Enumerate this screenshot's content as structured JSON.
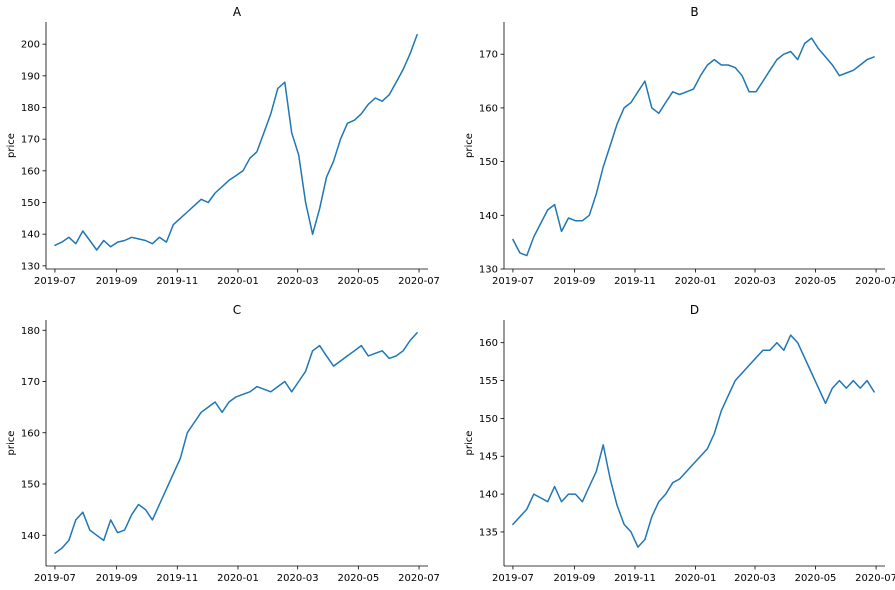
{
  "chart_data": [
    {
      "type": "line",
      "title": "A",
      "ylabel": "price",
      "xlim": [
        "2019-06-22",
        "2020-07-10"
      ],
      "ylim": [
        129,
        207
      ],
      "yticks": [
        130,
        140,
        150,
        160,
        170,
        180,
        190,
        200
      ],
      "xticks": [
        "2019-07",
        "2019-09",
        "2019-11",
        "2020-01",
        "2020-03",
        "2020-05",
        "2020-07"
      ],
      "color": "#1f77b4",
      "series": [
        {
          "x": [
            "2019-07-01",
            "2019-07-08",
            "2019-07-15",
            "2019-07-22",
            "2019-07-29",
            "2019-08-05",
            "2019-08-12",
            "2019-08-19",
            "2019-08-26",
            "2019-09-02",
            "2019-09-09",
            "2019-09-16",
            "2019-09-23",
            "2019-09-30",
            "2019-10-07",
            "2019-10-14",
            "2019-10-21",
            "2019-10-28",
            "2019-11-04",
            "2019-11-11",
            "2019-11-18",
            "2019-11-25",
            "2019-12-02",
            "2019-12-09",
            "2019-12-16",
            "2019-12-23",
            "2019-12-30",
            "2020-01-06",
            "2020-01-13",
            "2020-01-20",
            "2020-01-27",
            "2020-02-03",
            "2020-02-10",
            "2020-02-17",
            "2020-02-24",
            "2020-03-02",
            "2020-03-09",
            "2020-03-16",
            "2020-03-23",
            "2020-03-30",
            "2020-04-06",
            "2020-04-13",
            "2020-04-20",
            "2020-04-27",
            "2020-05-04",
            "2020-05-11",
            "2020-05-18",
            "2020-05-25",
            "2020-06-01",
            "2020-06-08",
            "2020-06-15",
            "2020-06-22",
            "2020-06-29"
          ],
          "values": [
            136.5,
            137.5,
            139,
            137,
            141,
            138,
            135,
            138,
            136,
            137.5,
            138,
            139,
            138.5,
            138,
            137,
            139,
            137.5,
            143,
            145,
            147,
            149,
            151,
            150,
            153,
            155,
            157,
            158.5,
            160,
            164,
            166,
            172,
            178,
            186,
            188,
            172,
            165,
            150,
            140,
            148,
            158,
            163,
            170,
            175,
            176,
            178,
            181,
            183,
            182,
            184,
            188,
            192,
            197,
            203
          ]
        }
      ]
    },
    {
      "type": "line",
      "title": "B",
      "ylabel": "price",
      "xlim": [
        "2019-06-22",
        "2020-07-10"
      ],
      "ylim": [
        130,
        176
      ],
      "yticks": [
        130,
        140,
        150,
        160,
        170
      ],
      "xticks": [
        "2019-07",
        "2019-09",
        "2019-11",
        "2020-01",
        "2020-03",
        "2020-05",
        "2020-07"
      ],
      "color": "#1f77b4",
      "series": [
        {
          "x": [
            "2019-07-01",
            "2019-07-08",
            "2019-07-15",
            "2019-07-22",
            "2019-07-29",
            "2019-08-05",
            "2019-08-12",
            "2019-08-19",
            "2019-08-26",
            "2019-09-02",
            "2019-09-09",
            "2019-09-16",
            "2019-09-23",
            "2019-09-30",
            "2019-10-07",
            "2019-10-14",
            "2019-10-21",
            "2019-10-28",
            "2019-11-04",
            "2019-11-11",
            "2019-11-18",
            "2019-11-25",
            "2019-12-02",
            "2019-12-09",
            "2019-12-16",
            "2019-12-23",
            "2019-12-30",
            "2020-01-06",
            "2020-01-13",
            "2020-01-20",
            "2020-01-27",
            "2020-02-03",
            "2020-02-10",
            "2020-02-17",
            "2020-02-24",
            "2020-03-02",
            "2020-03-09",
            "2020-03-16",
            "2020-03-23",
            "2020-03-30",
            "2020-04-06",
            "2020-04-13",
            "2020-04-20",
            "2020-04-27",
            "2020-05-04",
            "2020-05-11",
            "2020-05-18",
            "2020-05-25",
            "2020-06-01",
            "2020-06-08",
            "2020-06-15",
            "2020-06-22",
            "2020-06-29"
          ],
          "values": [
            135.5,
            133,
            132.5,
            136,
            138.5,
            141,
            142,
            137,
            139.5,
            139,
            139,
            140,
            144,
            149,
            153,
            157,
            160,
            161,
            163,
            165,
            160,
            159,
            161,
            163,
            162.5,
            163,
            163.5,
            166,
            168,
            169,
            168,
            168,
            167.5,
            166,
            163,
            163,
            165,
            167,
            169,
            170,
            170.5,
            169,
            172,
            173,
            171,
            169.5,
            168,
            166,
            166.5,
            167,
            168,
            169,
            169.5
          ]
        }
      ]
    },
    {
      "type": "line",
      "title": "C",
      "ylabel": "price",
      "xlim": [
        "2019-06-22",
        "2020-07-10"
      ],
      "ylim": [
        134,
        182
      ],
      "yticks": [
        140,
        150,
        160,
        170,
        180
      ],
      "xticks": [
        "2019-07",
        "2019-09",
        "2019-11",
        "2020-01",
        "2020-03",
        "2020-05",
        "2020-07"
      ],
      "color": "#1f77b4",
      "series": [
        {
          "x": [
            "2019-07-01",
            "2019-07-08",
            "2019-07-15",
            "2019-07-22",
            "2019-07-29",
            "2019-08-05",
            "2019-08-12",
            "2019-08-19",
            "2019-08-26",
            "2019-09-02",
            "2019-09-09",
            "2019-09-16",
            "2019-09-23",
            "2019-09-30",
            "2019-10-07",
            "2019-10-14",
            "2019-10-21",
            "2019-10-28",
            "2019-11-04",
            "2019-11-11",
            "2019-11-18",
            "2019-11-25",
            "2019-12-02",
            "2019-12-09",
            "2019-12-16",
            "2019-12-23",
            "2019-12-30",
            "2020-01-06",
            "2020-01-13",
            "2020-01-20",
            "2020-01-27",
            "2020-02-03",
            "2020-02-10",
            "2020-02-17",
            "2020-02-24",
            "2020-03-02",
            "2020-03-09",
            "2020-03-16",
            "2020-03-23",
            "2020-03-30",
            "2020-04-06",
            "2020-04-13",
            "2020-04-20",
            "2020-04-27",
            "2020-05-04",
            "2020-05-11",
            "2020-05-18",
            "2020-05-25",
            "2020-06-01",
            "2020-06-08",
            "2020-06-15",
            "2020-06-22",
            "2020-06-29"
          ],
          "values": [
            136.5,
            137.5,
            139,
            143,
            144.5,
            141,
            140,
            139,
            143,
            140.5,
            141,
            144,
            146,
            145,
            143,
            146,
            149,
            152,
            155,
            160,
            162,
            164,
            165,
            166,
            164,
            166,
            167,
            167.5,
            168,
            169,
            168.5,
            168,
            169,
            170,
            168,
            170,
            172,
            176,
            177,
            175,
            173,
            174,
            175,
            176,
            177,
            175,
            175.5,
            176,
            174.5,
            175,
            176,
            178,
            179.5
          ]
        }
      ]
    },
    {
      "type": "line",
      "title": "D",
      "ylabel": "price",
      "xlim": [
        "2019-06-22",
        "2020-07-10"
      ],
      "ylim": [
        130.5,
        163
      ],
      "yticks": [
        135,
        140,
        145,
        150,
        155,
        160
      ],
      "xticks": [
        "2019-07",
        "2019-09",
        "2019-11",
        "2020-01",
        "2020-03",
        "2020-05",
        "2020-07"
      ],
      "color": "#1f77b4",
      "series": [
        {
          "x": [
            "2019-07-01",
            "2019-07-08",
            "2019-07-15",
            "2019-07-22",
            "2019-07-29",
            "2019-08-05",
            "2019-08-12",
            "2019-08-19",
            "2019-08-26",
            "2019-09-02",
            "2019-09-09",
            "2019-09-16",
            "2019-09-23",
            "2019-09-30",
            "2019-10-07",
            "2019-10-14",
            "2019-10-21",
            "2019-10-28",
            "2019-11-04",
            "2019-11-11",
            "2019-11-18",
            "2019-11-25",
            "2019-12-02",
            "2019-12-09",
            "2019-12-16",
            "2019-12-23",
            "2019-12-30",
            "2020-01-06",
            "2020-01-13",
            "2020-01-20",
            "2020-01-27",
            "2020-02-03",
            "2020-02-10",
            "2020-02-17",
            "2020-02-24",
            "2020-03-02",
            "2020-03-09",
            "2020-03-16",
            "2020-03-23",
            "2020-03-30",
            "2020-04-06",
            "2020-04-13",
            "2020-04-20",
            "2020-04-27",
            "2020-05-04",
            "2020-05-11",
            "2020-05-18",
            "2020-05-25",
            "2020-06-01",
            "2020-06-08",
            "2020-06-15",
            "2020-06-22",
            "2020-06-29"
          ],
          "values": [
            136,
            137,
            138,
            140,
            139.5,
            139,
            141,
            139,
            140,
            140,
            139,
            141,
            143,
            146.5,
            142,
            138.5,
            136,
            135,
            133,
            134,
            137,
            139,
            140,
            141.5,
            142,
            143,
            144,
            145,
            146,
            148,
            151,
            153,
            155,
            156,
            157,
            158,
            159,
            159,
            160,
            159,
            161,
            160,
            158,
            156,
            154,
            152,
            154,
            155,
            154,
            155,
            154,
            155,
            153.5
          ]
        }
      ]
    }
  ]
}
